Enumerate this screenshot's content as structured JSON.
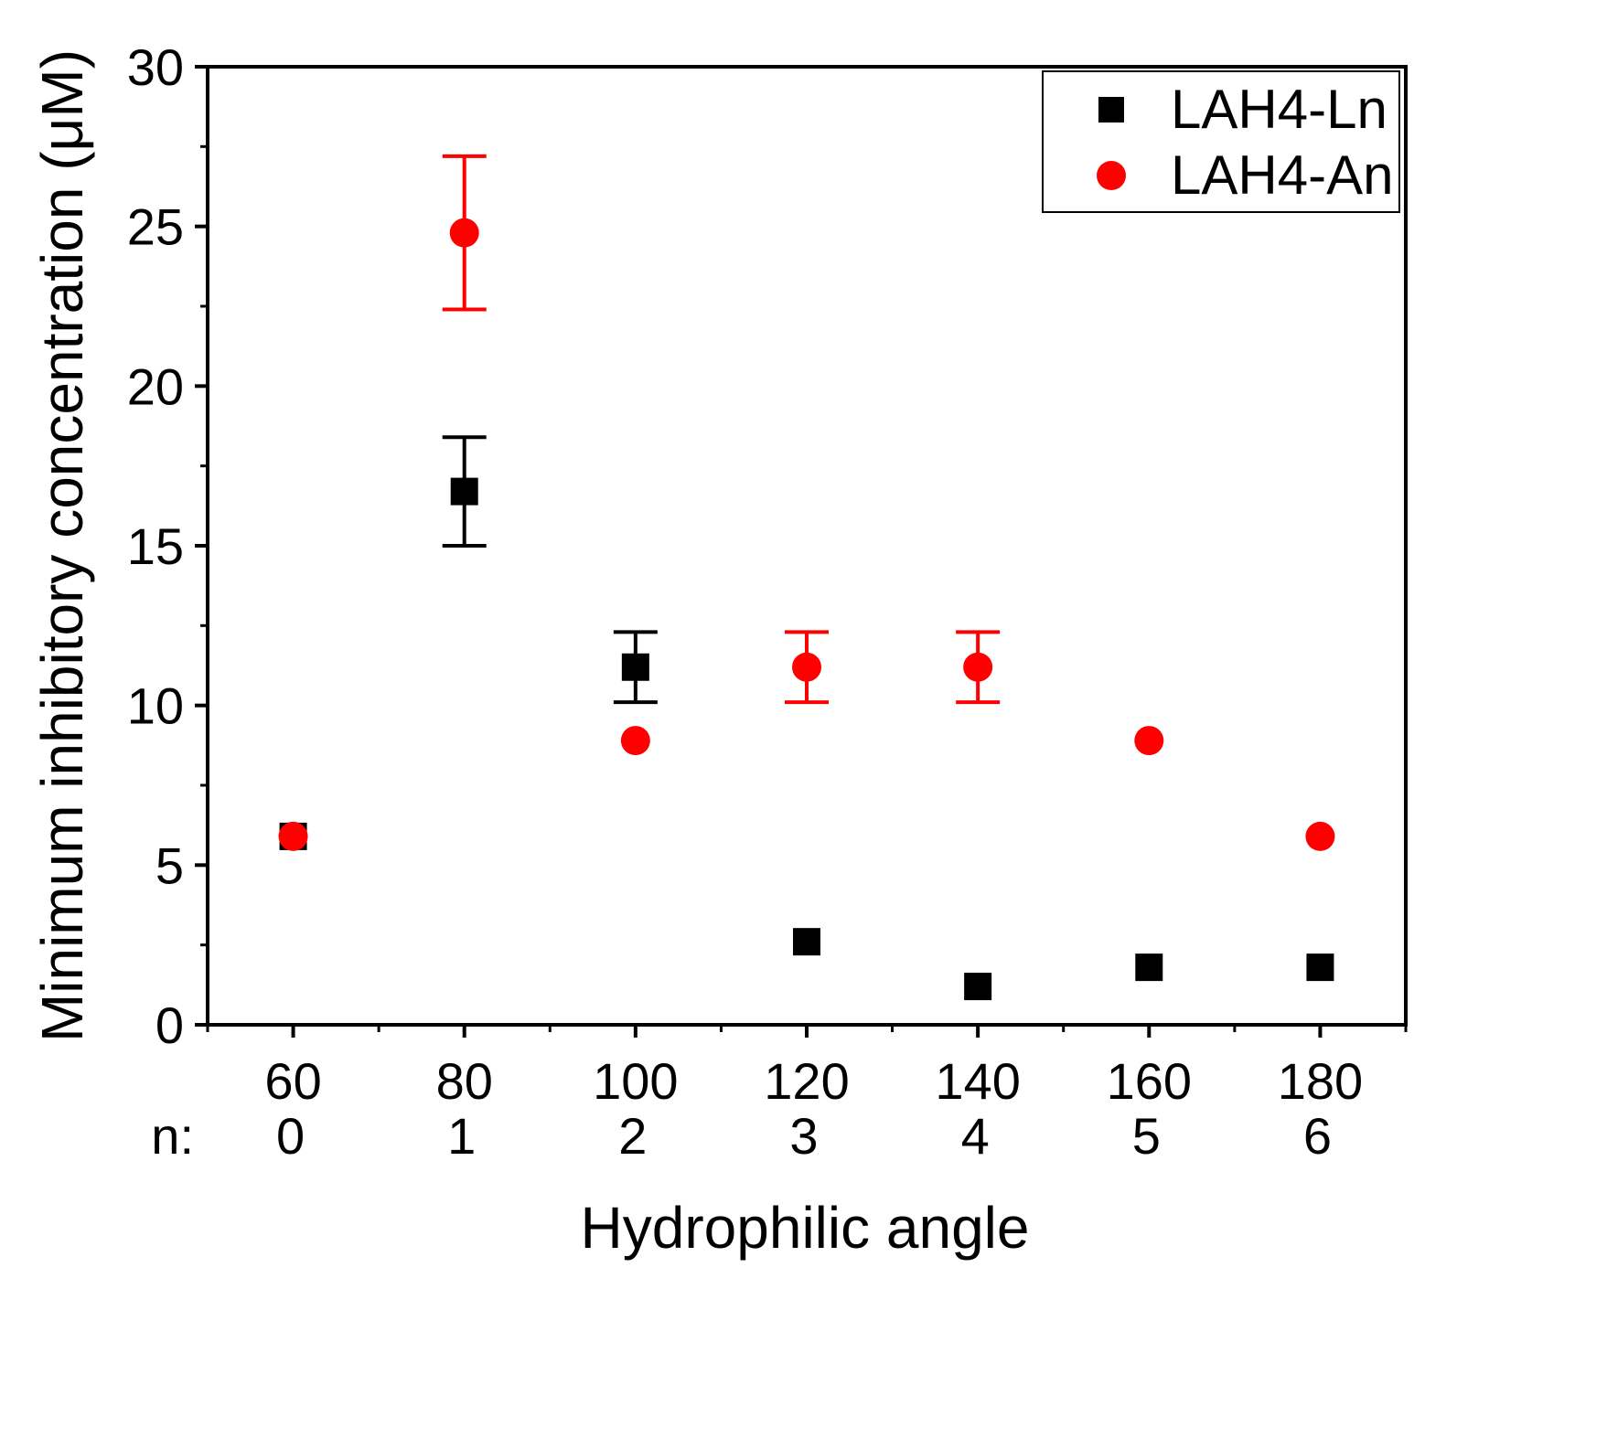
{
  "chart_data": {
    "type": "scatter",
    "title": "",
    "xlabel": "Hydrophilic angle",
    "ylabel": "Minimum inhibitory concentration (μM)",
    "xlim": [
      50,
      190
    ],
    "ylim": [
      0,
      30
    ],
    "x_ticks": [
      60,
      80,
      100,
      120,
      140,
      160,
      180
    ],
    "y_ticks": [
      0,
      5,
      10,
      15,
      20,
      25,
      30
    ],
    "secondary_x_label": "n:",
    "secondary_x_ticks": [
      "0",
      "1",
      "2",
      "3",
      "4",
      "5",
      "6"
    ],
    "grid": false,
    "legend_position": "top-right",
    "colors": {
      "LAH4-Ln": "#000000",
      "LAH4-An": "#ff0000"
    },
    "series": [
      {
        "name": "LAH4-Ln",
        "marker": "square",
        "x": [
          60,
          80,
          100,
          120,
          140,
          160,
          180
        ],
        "y": [
          5.9,
          16.7,
          11.2,
          2.6,
          1.2,
          1.8,
          1.8
        ],
        "err": [
          0,
          1.7,
          1.1,
          0,
          0,
          0,
          0
        ]
      },
      {
        "name": "LAH4-An",
        "marker": "circle",
        "x": [
          60,
          80,
          100,
          120,
          140,
          160,
          180
        ],
        "y": [
          5.9,
          24.8,
          8.9,
          11.2,
          11.2,
          8.9,
          5.9
        ],
        "err": [
          0,
          2.4,
          0,
          1.1,
          1.1,
          0,
          0
        ]
      }
    ]
  }
}
